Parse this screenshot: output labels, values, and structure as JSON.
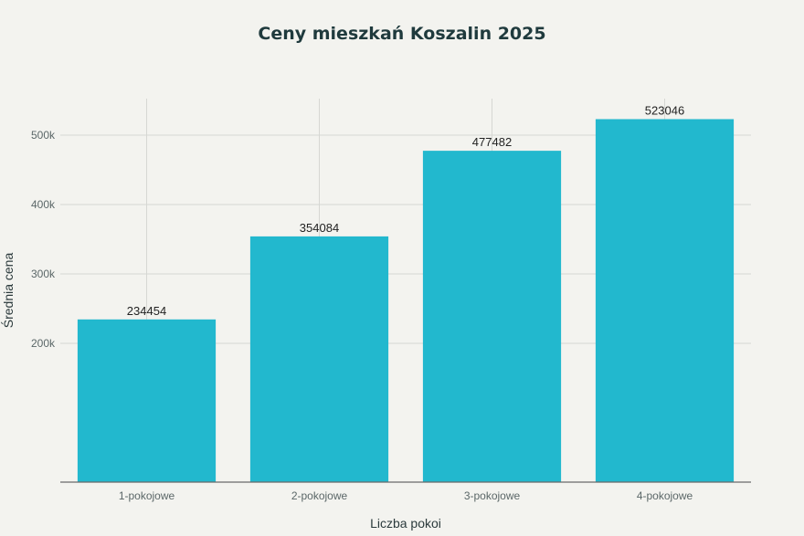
{
  "chart_data": {
    "type": "bar",
    "title": "Ceny mieszkań Koszalin 2025",
    "xlabel": "Liczba pokoi",
    "ylabel": "Średnia cena",
    "categories": [
      "1-pokojowe",
      "2-pokojowe",
      "3-pokojowe",
      "4-pokojowe"
    ],
    "values": [
      234454,
      354084,
      477482,
      523046
    ],
    "data_labels": [
      "234454",
      "354084",
      "477482",
      "523046"
    ],
    "yticks": [
      200000,
      300000,
      400000,
      500000
    ],
    "ytick_labels": [
      "200k",
      "300k",
      "400k",
      "500k"
    ],
    "ylim": [
      0,
      550000
    ],
    "grid": true,
    "bar_color": "#22b8ce"
  }
}
